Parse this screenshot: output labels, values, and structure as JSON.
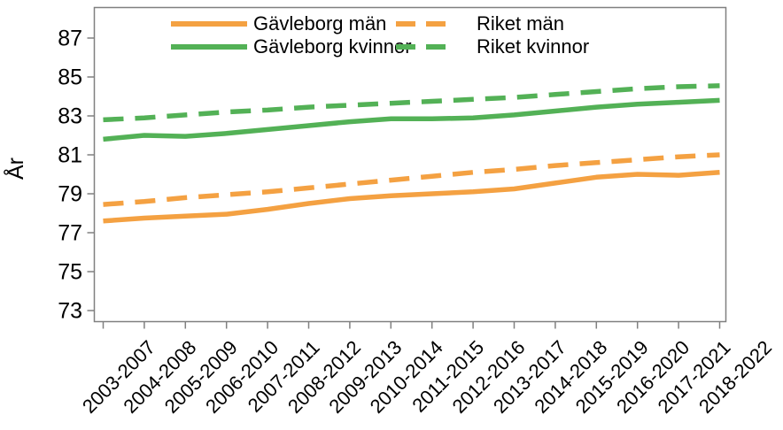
{
  "chart_data": {
    "type": "line",
    "title": "",
    "xlabel": "",
    "ylabel": "År",
    "ylim": [
      72.5,
      88.6
    ],
    "y_ticks": [
      73,
      75,
      77,
      79,
      81,
      83,
      85,
      87
    ],
    "grid": false,
    "legend_position": "top",
    "axis_color": "#808080",
    "text_color": "#000000",
    "categories": [
      "2003-2007",
      "2004-2008",
      "2005-2009",
      "2006-2010",
      "2007-2011",
      "2008-2012",
      "2009-2013",
      "2010-2014",
      "2011-2015",
      "2012-2016",
      "2013-2017",
      "2014-2018",
      "2015-2019",
      "2016-2020",
      "2017-2021",
      "2018-2022"
    ],
    "series": [
      {
        "name": "Gävleborg män",
        "color": "#F4A142",
        "dash": "solid",
        "values": [
          77.6,
          77.75,
          77.85,
          77.95,
          78.2,
          78.5,
          78.75,
          78.9,
          79.0,
          79.1,
          79.25,
          79.55,
          79.85,
          80.0,
          79.95,
          80.1
        ]
      },
      {
        "name": "Gävleborg kvinnor",
        "color": "#53B156",
        "dash": "solid",
        "values": [
          81.8,
          82.0,
          81.95,
          82.1,
          82.3,
          82.5,
          82.7,
          82.85,
          82.85,
          82.9,
          83.05,
          83.25,
          83.45,
          83.6,
          83.7,
          83.8
        ]
      },
      {
        "name": "Riket män",
        "color": "#F4A142",
        "dash": "dashed",
        "values": [
          78.45,
          78.6,
          78.8,
          78.95,
          79.1,
          79.3,
          79.5,
          79.7,
          79.9,
          80.1,
          80.25,
          80.45,
          80.6,
          80.75,
          80.9,
          81.0
        ]
      },
      {
        "name": "Riket kvinnor",
        "color": "#53B156",
        "dash": "dashed",
        "values": [
          82.8,
          82.9,
          83.05,
          83.2,
          83.3,
          83.45,
          83.55,
          83.65,
          83.75,
          83.85,
          83.95,
          84.1,
          84.25,
          84.4,
          84.5,
          84.55
        ]
      }
    ]
  }
}
